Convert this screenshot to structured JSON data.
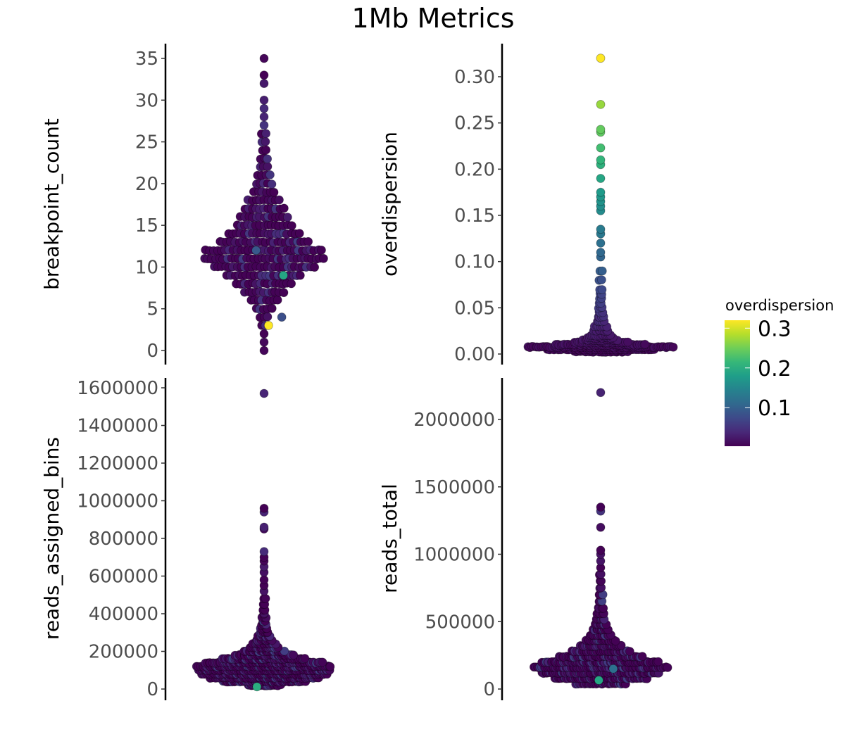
{
  "title": "1Mb Metrics",
  "legend": {
    "title": "overdispersion",
    "ticks": [
      {
        "value": 0.1,
        "label": "0.1"
      },
      {
        "value": 0.2,
        "label": "0.2"
      },
      {
        "value": 0.3,
        "label": "0.3"
      }
    ],
    "range": [
      0.003,
      0.32
    ],
    "colormap": [
      "#440154",
      "#482878",
      "#3e4989",
      "#31688e",
      "#26828e",
      "#1f9e89",
      "#35b779",
      "#6ece58",
      "#b5de2b",
      "#fde725"
    ]
  },
  "chart_data": [
    {
      "type": "scatter",
      "style": "beeswarm",
      "ylabel": "breakpoint_count",
      "ylim": [
        0,
        35
      ],
      "yticks": [
        {
          "v": 0,
          "l": "0"
        },
        {
          "v": 5,
          "l": "5"
        },
        {
          "v": 10,
          "l": "10"
        },
        {
          "v": 15,
          "l": "15"
        },
        {
          "v": 20,
          "l": "20"
        },
        {
          "v": 25,
          "l": "25"
        },
        {
          "v": 30,
          "l": "30"
        },
        {
          "v": 35,
          "l": "35"
        }
      ],
      "bins": [
        [
          0,
          1
        ],
        [
          1,
          1
        ],
        [
          2,
          1
        ],
        [
          3,
          2
        ],
        [
          4,
          3
        ],
        [
          5,
          5
        ],
        [
          6,
          8
        ],
        [
          7,
          11
        ],
        [
          8,
          15
        ],
        [
          9,
          20
        ],
        [
          10,
          27
        ],
        [
          11,
          32
        ],
        [
          12,
          31
        ],
        [
          13,
          24
        ],
        [
          14,
          19
        ],
        [
          15,
          15
        ],
        [
          16,
          13
        ],
        [
          17,
          11
        ],
        [
          18,
          9
        ],
        [
          19,
          6
        ],
        [
          20,
          5
        ],
        [
          21,
          4
        ],
        [
          22,
          3
        ],
        [
          23,
          3
        ],
        [
          24,
          2
        ],
        [
          25,
          2
        ],
        [
          26,
          2
        ],
        [
          27,
          1
        ],
        [
          28,
          1
        ],
        [
          29,
          1
        ],
        [
          30,
          1
        ],
        [
          32,
          1
        ],
        [
          33,
          1
        ],
        [
          35,
          1
        ]
      ],
      "highlights": [
        {
          "y": 9,
          "od": 0.19
        },
        {
          "y": 12,
          "od": 0.09
        },
        {
          "y": 3,
          "od": 0.32
        },
        {
          "y": 4,
          "od": 0.08
        }
      ]
    },
    {
      "type": "scatter",
      "style": "beeswarm",
      "ylabel": "overdispersion",
      "ylim": [
        0,
        0.32
      ],
      "yticks": [
        {
          "v": 0,
          "l": "0.00"
        },
        {
          "v": 0.05,
          "l": "0.05"
        },
        {
          "v": 0.1,
          "l": "0.10"
        },
        {
          "v": 0.15,
          "l": "0.15"
        },
        {
          "v": 0.2,
          "l": "0.20"
        },
        {
          "v": 0.25,
          "l": "0.25"
        },
        {
          "v": 0.3,
          "l": "0.30"
        }
      ],
      "bins": [
        [
          0.0025,
          30
        ],
        [
          0.005,
          60
        ],
        [
          0.0075,
          80
        ],
        [
          0.01,
          50
        ],
        [
          0.0125,
          30
        ],
        [
          0.015,
          20
        ],
        [
          0.0175,
          15
        ],
        [
          0.02,
          12
        ],
        [
          0.025,
          9
        ],
        [
          0.03,
          7
        ],
        [
          0.035,
          5
        ],
        [
          0.04,
          4
        ],
        [
          0.045,
          3
        ],
        [
          0.05,
          3
        ],
        [
          0.055,
          2
        ],
        [
          0.06,
          2
        ],
        [
          0.065,
          2
        ],
        [
          0.07,
          2
        ],
        [
          0.08,
          2
        ],
        [
          0.09,
          2
        ],
        [
          0.105,
          1
        ],
        [
          0.11,
          1
        ],
        [
          0.12,
          1
        ],
        [
          0.13,
          1
        ],
        [
          0.135,
          1
        ],
        [
          0.155,
          1
        ],
        [
          0.16,
          1
        ],
        [
          0.165,
          1
        ],
        [
          0.17,
          1
        ],
        [
          0.175,
          1
        ],
        [
          0.19,
          1
        ],
        [
          0.205,
          1
        ],
        [
          0.21,
          1
        ],
        [
          0.223,
          1
        ],
        [
          0.24,
          1
        ],
        [
          0.243,
          1
        ],
        [
          0.27,
          1
        ],
        [
          0.32,
          1
        ]
      ],
      "color_by_y": true
    },
    {
      "type": "scatter",
      "style": "beeswarm",
      "ylabel": "reads_assigned_bins",
      "ylim": [
        0,
        1600000
      ],
      "yticks": [
        {
          "v": 0,
          "l": "0"
        },
        {
          "v": 200000,
          "l": "200000"
        },
        {
          "v": 400000,
          "l": "400000"
        },
        {
          "v": 600000,
          "l": "600000"
        },
        {
          "v": 800000,
          "l": "800000"
        },
        {
          "v": 1000000,
          "l": "1000000"
        },
        {
          "v": 1200000,
          "l": "1200000"
        },
        {
          "v": 1400000,
          "l": "1400000"
        },
        {
          "v": 1600000,
          "l": "1600000"
        }
      ],
      "bins": [
        [
          20000,
          20
        ],
        [
          40000,
          50
        ],
        [
          60000,
          65
        ],
        [
          80000,
          75
        ],
        [
          100000,
          78
        ],
        [
          120000,
          80
        ],
        [
          140000,
          70
        ],
        [
          160000,
          50
        ],
        [
          180000,
          35
        ],
        [
          200000,
          25
        ],
        [
          220000,
          18
        ],
        [
          240000,
          14
        ],
        [
          260000,
          10
        ],
        [
          280000,
          8
        ],
        [
          300000,
          6
        ],
        [
          320000,
          5
        ],
        [
          340000,
          4
        ],
        [
          360000,
          3
        ],
        [
          380000,
          3
        ],
        [
          400000,
          2
        ],
        [
          420000,
          2
        ],
        [
          450000,
          2
        ],
        [
          480000,
          2
        ],
        [
          520000,
          1
        ],
        [
          550000,
          1
        ],
        [
          580000,
          1
        ],
        [
          620000,
          1
        ],
        [
          650000,
          1
        ],
        [
          680000,
          1
        ],
        [
          700000,
          1
        ],
        [
          730000,
          1
        ],
        [
          850000,
          1
        ],
        [
          860000,
          1
        ],
        [
          940000,
          1
        ],
        [
          960000,
          1
        ],
        [
          1570000,
          1
        ]
      ],
      "highlights": [
        {
          "y": 12000,
          "od": 0.2
        }
      ]
    },
    {
      "type": "scatter",
      "style": "beeswarm",
      "ylabel": "reads_total",
      "ylim": [
        0,
        2300000
      ],
      "yticks": [
        {
          "v": 0,
          "l": "0"
        },
        {
          "v": 500000,
          "l": "500000"
        },
        {
          "v": 1000000,
          "l": "1000000"
        },
        {
          "v": 1500000,
          "l": "1500000"
        },
        {
          "v": 2000000,
          "l": "2000000"
        }
      ],
      "bins": [
        [
          40000,
          30
        ],
        [
          80000,
          55
        ],
        [
          120000,
          70
        ],
        [
          160000,
          80
        ],
        [
          200000,
          70
        ],
        [
          240000,
          50
        ],
        [
          280000,
          35
        ],
        [
          320000,
          25
        ],
        [
          360000,
          18
        ],
        [
          400000,
          13
        ],
        [
          440000,
          10
        ],
        [
          480000,
          8
        ],
        [
          520000,
          6
        ],
        [
          560000,
          5
        ],
        [
          600000,
          4
        ],
        [
          650000,
          3
        ],
        [
          700000,
          3
        ],
        [
          750000,
          2
        ],
        [
          800000,
          2
        ],
        [
          850000,
          2
        ],
        [
          900000,
          1
        ],
        [
          950000,
          1
        ],
        [
          1000000,
          1
        ],
        [
          1030000,
          1
        ],
        [
          1200000,
          1
        ],
        [
          1320000,
          1
        ],
        [
          1350000,
          1
        ],
        [
          2200000,
          1
        ]
      ],
      "highlights": [
        {
          "y": 65000,
          "od": 0.19
        },
        {
          "y": 150000,
          "od": 0.12
        }
      ]
    }
  ]
}
